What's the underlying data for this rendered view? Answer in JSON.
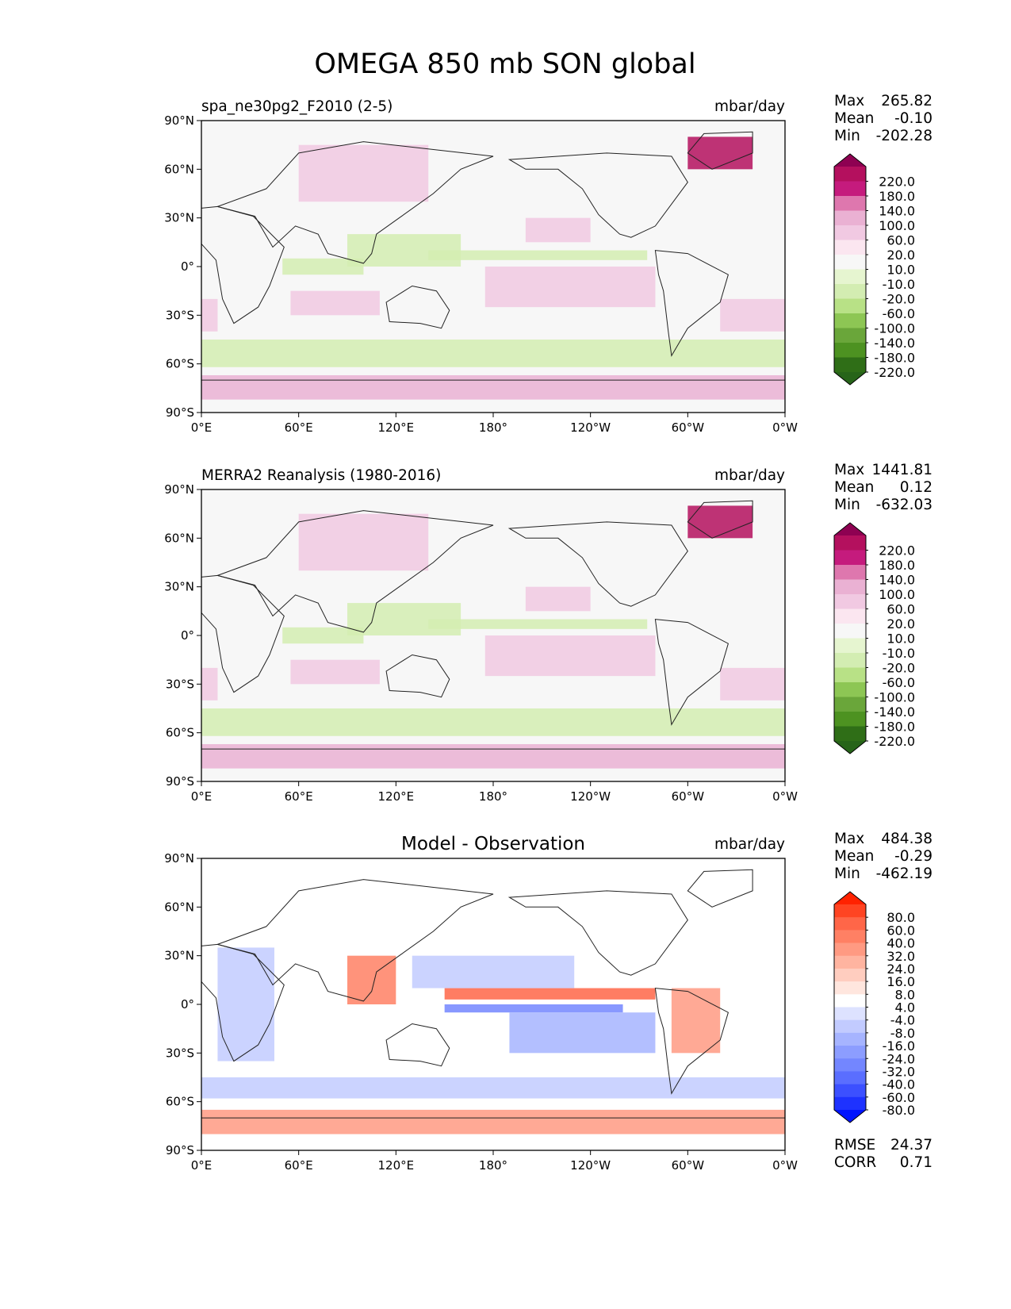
{
  "title": "OMEGA 850 mb SON global",
  "panels": [
    {
      "id": "test",
      "left_title": "spa_ne30pg2_F2010 (2-5)",
      "center_title": "",
      "units": "mbar/day",
      "stats": [
        {
          "label": "Max",
          "value": "265.82"
        },
        {
          "label": "Mean",
          "value": "-0.10"
        },
        {
          "label": "Min",
          "value": "-202.28"
        }
      ],
      "extra_stats": [],
      "colorbar": {
        "ticks": [
          "220.0",
          "180.0",
          "140.0",
          "100.0",
          "60.0",
          "20.0",
          "10.0",
          "-10.0",
          "-20.0",
          "-60.0",
          "-100.0",
          "-140.0",
          "-180.0",
          "-220.0"
        ],
        "colors": [
          "#8e0152",
          "#b4105e",
          "#c51b7d",
          "#de77ae",
          "#eab1d3",
          "#f1c9e2",
          "#fbe6f0",
          "#f7f7f7",
          "#e6f5d0",
          "#d3edb2",
          "#b8e186",
          "#8dc654",
          "#6aa63a",
          "#4d9221",
          "#2f6e17",
          "#276419"
        ]
      },
      "lon_ticks": [
        "0°E",
        "60°E",
        "120°E",
        "180°",
        "120°W",
        "60°W",
        "0°W"
      ],
      "lat_ticks": [
        "90°N",
        "60°N",
        "30°N",
        "0°",
        "30°S",
        "60°S",
        "90°S"
      ]
    },
    {
      "id": "ref",
      "left_title": "MERRA2 Reanalysis (1980-2016)",
      "center_title": "",
      "units": "mbar/day",
      "stats": [
        {
          "label": "Max",
          "value": "1441.81"
        },
        {
          "label": "Mean",
          "value": "0.12"
        },
        {
          "label": "Min",
          "value": "-632.03"
        }
      ],
      "extra_stats": [],
      "colorbar": {
        "ticks": [
          "220.0",
          "180.0",
          "140.0",
          "100.0",
          "60.0",
          "20.0",
          "10.0",
          "-10.0",
          "-20.0",
          "-60.0",
          "-100.0",
          "-140.0",
          "-180.0",
          "-220.0"
        ],
        "colors": [
          "#8e0152",
          "#b4105e",
          "#c51b7d",
          "#de77ae",
          "#eab1d3",
          "#f1c9e2",
          "#fbe6f0",
          "#f7f7f7",
          "#e6f5d0",
          "#d3edb2",
          "#b8e186",
          "#8dc654",
          "#6aa63a",
          "#4d9221",
          "#2f6e17",
          "#276419"
        ]
      },
      "lon_ticks": [
        "0°E",
        "60°E",
        "120°E",
        "180°",
        "120°W",
        "60°W",
        "0°W"
      ],
      "lat_ticks": [
        "90°N",
        "60°N",
        "30°N",
        "0°",
        "30°S",
        "60°S",
        "90°S"
      ]
    },
    {
      "id": "diff",
      "left_title": "",
      "center_title": "Model - Observation",
      "units": "mbar/day",
      "stats": [
        {
          "label": "Max",
          "value": "484.38"
        },
        {
          "label": "Mean",
          "value": "-0.29"
        },
        {
          "label": "Min",
          "value": "-462.19"
        }
      ],
      "extra_stats": [
        {
          "label": "RMSE",
          "value": "24.37"
        },
        {
          "label": "CORR",
          "value": "0.71"
        }
      ],
      "colorbar": {
        "ticks": [
          "80.0",
          "60.0",
          "40.0",
          "32.0",
          "24.0",
          "16.0",
          "8.0",
          "4.0",
          "-4.0",
          "-8.0",
          "-16.0",
          "-24.0",
          "-32.0",
          "-40.0",
          "-60.0",
          "-80.0"
        ],
        "colors": [
          "#ff2200",
          "#ff4422",
          "#ff6648",
          "#ff8064",
          "#ff9a82",
          "#ffb4a0",
          "#ffcdbf",
          "#ffe6de",
          "#ffffff",
          "#dde2ff",
          "#c2cbff",
          "#a6b4ff",
          "#8c9dff",
          "#7386ff",
          "#5a6eff",
          "#3c50ff",
          "#1e32ff",
          "#0014ff"
        ]
      },
      "lon_ticks": [
        "0°E",
        "60°E",
        "120°E",
        "180°",
        "120°W",
        "60°W",
        "0°W"
      ],
      "lat_ticks": [
        "90°N",
        "60°N",
        "30°N",
        "0°",
        "30°S",
        "60°S",
        "90°S"
      ]
    }
  ],
  "chart_data": [
    {
      "type": "heatmap",
      "title": "spa_ne30pg2_F2010 (2-5)",
      "units": "mbar/day",
      "x_range": [
        0,
        360
      ],
      "y_range": [
        -90,
        90
      ],
      "x_ticks": [
        0,
        60,
        120,
        180,
        240,
        300,
        360
      ],
      "y_ticks": [
        90,
        60,
        30,
        0,
        -30,
        -60,
        -90
      ],
      "levels": [
        -220,
        -180,
        -140,
        -100,
        -60,
        -20,
        -10,
        10,
        20,
        60,
        100,
        140,
        180,
        220
      ],
      "max": 265.82,
      "mean": -0.1,
      "min": -202.28
    },
    {
      "type": "heatmap",
      "title": "MERRA2 Reanalysis (1980-2016)",
      "units": "mbar/day",
      "x_range": [
        0,
        360
      ],
      "y_range": [
        -90,
        90
      ],
      "x_ticks": [
        0,
        60,
        120,
        180,
        240,
        300,
        360
      ],
      "y_ticks": [
        90,
        60,
        30,
        0,
        -30,
        -60,
        -90
      ],
      "levels": [
        -220,
        -180,
        -140,
        -100,
        -60,
        -20,
        -10,
        10,
        20,
        60,
        100,
        140,
        180,
        220
      ],
      "max": 1441.81,
      "mean": 0.12,
      "min": -632.03
    },
    {
      "type": "heatmap",
      "title": "Model - Observation",
      "units": "mbar/day",
      "x_range": [
        0,
        360
      ],
      "y_range": [
        -90,
        90
      ],
      "x_ticks": [
        0,
        60,
        120,
        180,
        240,
        300,
        360
      ],
      "y_ticks": [
        90,
        60,
        30,
        0,
        -30,
        -60,
        -90
      ],
      "levels": [
        -80,
        -60,
        -40,
        -32,
        -24,
        -16,
        -8,
        -4,
        4,
        8,
        16,
        24,
        32,
        40,
        60,
        80
      ],
      "max": 484.38,
      "mean": -0.29,
      "min": -462.19,
      "rmse": 24.37,
      "corr": 0.71
    }
  ]
}
